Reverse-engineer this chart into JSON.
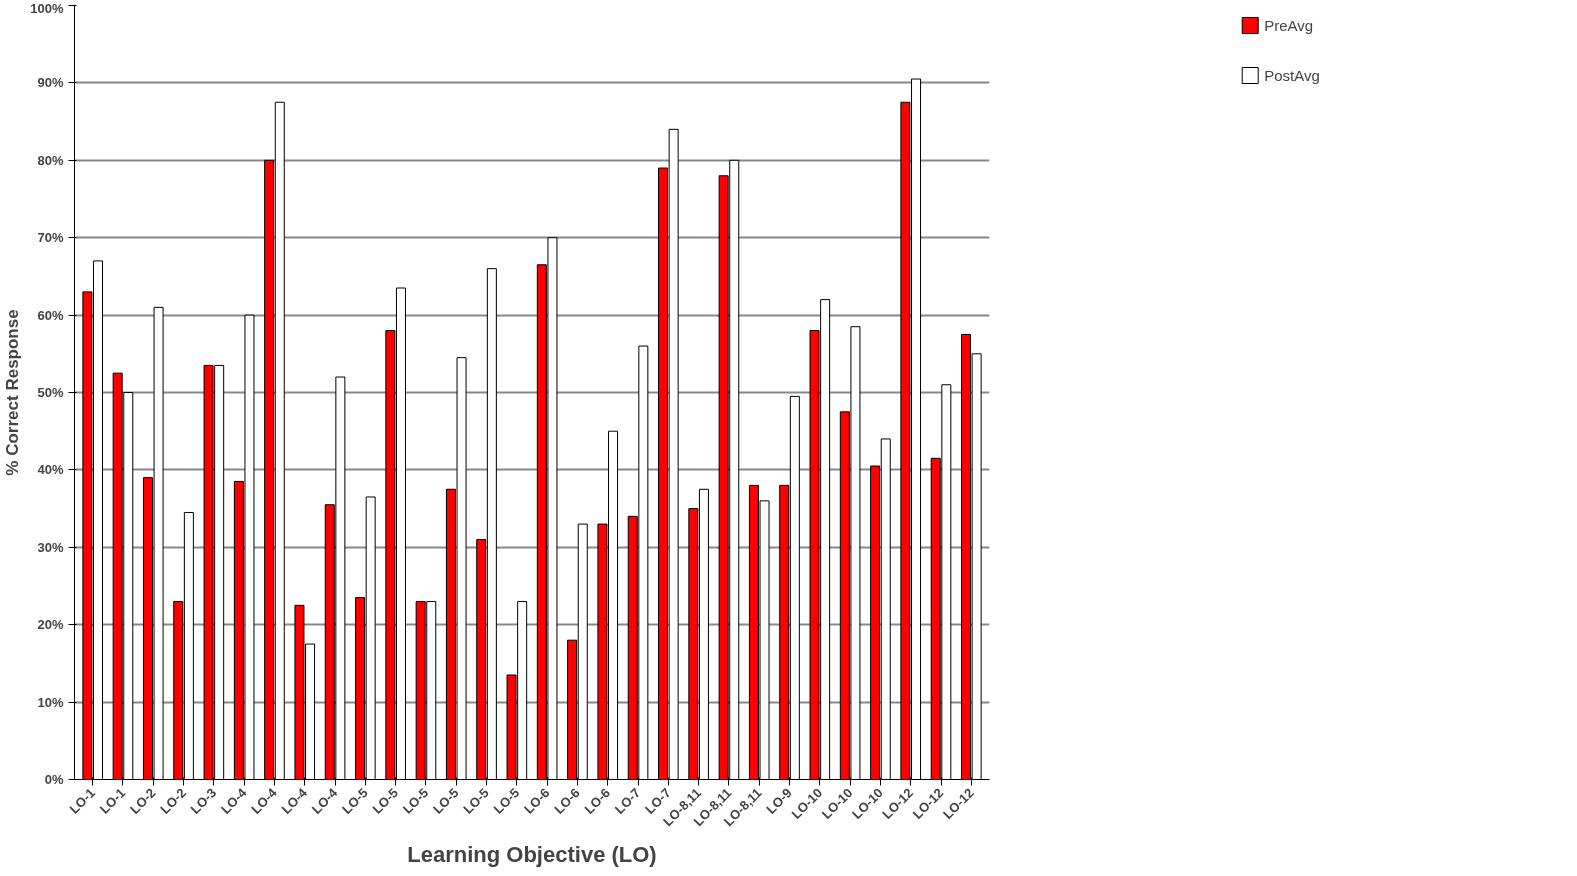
{
  "chart_data": {
    "type": "bar",
    "xlabel": "Learning Objective (LO)",
    "ylabel": "% Correct Response",
    "categories": [
      "LO-1",
      "LO-1",
      "LO-2",
      "LO-2",
      "LO-3",
      "LO-4",
      "LO-4",
      "LO-4",
      "LO-4",
      "LO-5",
      "LO-5",
      "LO-5",
      "LO-5",
      "LO-5",
      "LO-5",
      "LO-6",
      "LO-6",
      "LO-6",
      "LO-7",
      "LO-7",
      "LO-8,11",
      "LO-8,11",
      "LO-8,11",
      "LO-9",
      "LO-10",
      "LO-10",
      "LO-10",
      "LO-12",
      "LO-12",
      "LO-12"
    ],
    "series": [
      {
        "name": "PreAvg",
        "color": "#ff0000",
        "values": [
          63,
          52.5,
          39,
          23,
          53.5,
          38.5,
          80,
          22.5,
          35.5,
          23.5,
          58,
          23,
          37.5,
          31,
          13.5,
          66.5,
          18,
          33,
          34,
          79,
          35,
          78,
          38,
          38,
          58,
          47.5,
          40.5,
          87.5,
          41.5,
          57.5
        ]
      },
      {
        "name": "PostAvg",
        "color": "#ffffff",
        "values": [
          67,
          50,
          61,
          34.5,
          53.5,
          60,
          87.5,
          17.5,
          52,
          36.5,
          63.5,
          23,
          54.5,
          66,
          23,
          70,
          33,
          45,
          56,
          84,
          37.5,
          80,
          36,
          49.5,
          62,
          58.5,
          44,
          90.5,
          51,
          55
        ]
      }
    ],
    "ylim": [
      0,
      100
    ],
    "yticks": [
      {
        "value": 0,
        "label": "0%"
      },
      {
        "value": 10,
        "label": "10%"
      },
      {
        "value": 20,
        "label": "20%"
      },
      {
        "value": 30,
        "label": "30%"
      },
      {
        "value": 40,
        "label": "40%"
      },
      {
        "value": 50,
        "label": "50%"
      },
      {
        "value": 60,
        "label": "60%"
      },
      {
        "value": 70,
        "label": "70%"
      },
      {
        "value": 80,
        "label": "80%"
      },
      {
        "value": 90,
        "label": "90%"
      },
      {
        "value": 100,
        "label": "100%"
      }
    ],
    "grid": "y",
    "legend": "top right"
  }
}
